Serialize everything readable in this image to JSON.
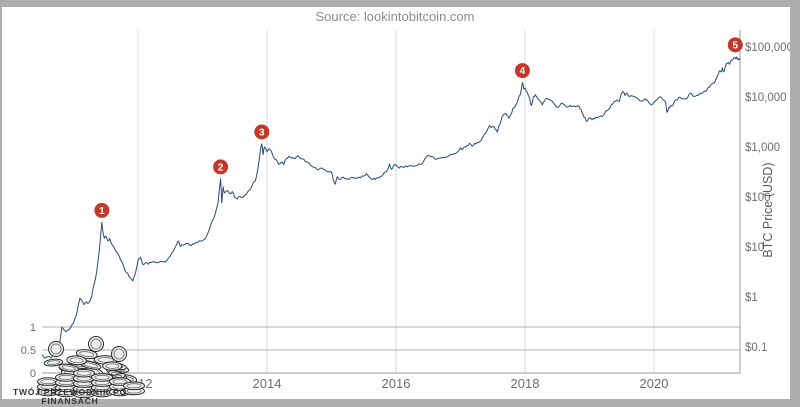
{
  "source_label": "Source: lookintobitcoin.com",
  "watermark": {
    "line1": "TWÓJ PRZEWODNIK PO",
    "line2": "FINANSACH"
  },
  "colors": {
    "line": "#2b4a7d",
    "marker": "#c0392b",
    "marker_text": "#ffffff",
    "grid_vertical": "#d9d9d9",
    "grid_horizontal": "#b3b3b3",
    "axis_line": "#9b9b9b",
    "tick_text": "#6e6e6e",
    "frame": "#aeaeae"
  },
  "chart_data": {
    "type": "line",
    "title": "",
    "xlabel": "",
    "ylabel": "BTC Price (USD)",
    "legend": "none",
    "grid": "partial",
    "x_ticks": [
      "2012",
      "2014",
      "2016",
      "2018",
      "2020"
    ],
    "x_tick_values": [
      2012,
      2014,
      2016,
      2018,
      2020
    ],
    "x_range": [
      2010.51,
      2021.35
    ],
    "right_axis": {
      "scale": "log",
      "tick_labels": [
        "$100,000",
        "$10,000",
        "$1,000",
        "$100",
        "$10",
        "$1",
        "$0.1"
      ],
      "tick_values": [
        100000,
        10000,
        1000,
        100,
        10,
        1,
        0.1
      ],
      "range_usd": [
        0.03,
        219000
      ]
    },
    "left_axis": {
      "scale": "linear",
      "tick_labels": [
        "1",
        "0.5",
        "0"
      ],
      "tick_values": [
        1,
        0.5,
        0
      ],
      "range": [
        0,
        1
      ]
    },
    "markers": [
      {
        "label": "1",
        "year": 2011.44,
        "price": 31
      },
      {
        "label": "2",
        "year": 2013.28,
        "price": 230
      },
      {
        "label": "3",
        "year": 2013.92,
        "price": 1150
      },
      {
        "label": "4",
        "year": 2017.96,
        "price": 19400
      },
      {
        "label": "5",
        "year": 2021.26,
        "price": 63500
      }
    ],
    "series": [
      {
        "name": "BTC Price",
        "points": [
          [
            2010.51,
            0.07
          ],
          [
            2010.55,
            0.06
          ],
          [
            2010.6,
            0.065
          ],
          [
            2010.65,
            0.06
          ],
          [
            2010.7,
            0.07
          ],
          [
            2010.75,
            0.09
          ],
          [
            2010.78,
            0.11
          ],
          [
            2010.82,
            0.25
          ],
          [
            2010.85,
            0.22
          ],
          [
            2010.88,
            0.2
          ],
          [
            2010.92,
            0.22
          ],
          [
            2010.96,
            0.25
          ],
          [
            2011.0,
            0.3
          ],
          [
            2011.04,
            0.42
          ],
          [
            2011.08,
            0.75
          ],
          [
            2011.1,
            0.95
          ],
          [
            2011.13,
            0.85
          ],
          [
            2011.16,
            0.7
          ],
          [
            2011.2,
            0.8
          ],
          [
            2011.24,
            0.77
          ],
          [
            2011.28,
            1.0
          ],
          [
            2011.32,
            1.8
          ],
          [
            2011.36,
            3.2
          ],
          [
            2011.4,
            8.5
          ],
          [
            2011.42,
            17
          ],
          [
            2011.44,
            31
          ],
          [
            2011.46,
            19
          ],
          [
            2011.48,
            15
          ],
          [
            2011.5,
            16.5
          ],
          [
            2011.53,
            13.5
          ],
          [
            2011.56,
            14.8
          ],
          [
            2011.6,
            11
          ],
          [
            2011.64,
            9
          ],
          [
            2011.68,
            7.5
          ],
          [
            2011.72,
            6
          ],
          [
            2011.76,
            4.8
          ],
          [
            2011.8,
            3.4
          ],
          [
            2011.84,
            3.0
          ],
          [
            2011.88,
            2.4
          ],
          [
            2011.92,
            2.1
          ],
          [
            2011.96,
            3.0
          ],
          [
            2012.0,
            5.4
          ],
          [
            2012.04,
            6.2
          ],
          [
            2012.08,
            4.4
          ],
          [
            2012.12,
            4.9
          ],
          [
            2012.16,
            4.5
          ],
          [
            2012.2,
            4.9
          ],
          [
            2012.25,
            5.1
          ],
          [
            2012.3,
            4.9
          ],
          [
            2012.35,
            5.2
          ],
          [
            2012.4,
            5.1
          ],
          [
            2012.45,
            5.4
          ],
          [
            2012.5,
            6.6
          ],
          [
            2012.55,
            8.4
          ],
          [
            2012.6,
            11.2
          ],
          [
            2012.63,
            13.2
          ],
          [
            2012.66,
            10.2
          ],
          [
            2012.7,
            10.9
          ],
          [
            2012.75,
            11.8
          ],
          [
            2012.8,
            10.8
          ],
          [
            2012.85,
            11.6
          ],
          [
            2012.9,
            12.5
          ],
          [
            2012.95,
            13.3
          ],
          [
            2013.0,
            13.4
          ],
          [
            2013.05,
            15
          ],
          [
            2013.1,
            21
          ],
          [
            2013.15,
            33
          ],
          [
            2013.2,
            47
          ],
          [
            2013.24,
            75
          ],
          [
            2013.28,
            230
          ],
          [
            2013.3,
            77
          ],
          [
            2013.32,
            160
          ],
          [
            2013.34,
            120
          ],
          [
            2013.38,
            135
          ],
          [
            2013.42,
            117
          ],
          [
            2013.46,
            128
          ],
          [
            2013.5,
            97
          ],
          [
            2013.54,
            91
          ],
          [
            2013.58,
            103
          ],
          [
            2013.62,
            97
          ],
          [
            2013.66,
            108
          ],
          [
            2013.7,
            127
          ],
          [
            2013.74,
            140
          ],
          [
            2013.78,
            185
          ],
          [
            2013.82,
            210
          ],
          [
            2013.86,
            380
          ],
          [
            2013.9,
            900
          ],
          [
            2013.92,
            1150
          ],
          [
            2013.94,
            705
          ],
          [
            2013.96,
            1000
          ],
          [
            2014.0,
            805
          ],
          [
            2014.03,
            930
          ],
          [
            2014.07,
            820
          ],
          [
            2014.1,
            630
          ],
          [
            2014.14,
            570
          ],
          [
            2014.18,
            450
          ],
          [
            2014.22,
            500
          ],
          [
            2014.26,
            445
          ],
          [
            2014.3,
            590
          ],
          [
            2014.34,
            655
          ],
          [
            2014.38,
            600
          ],
          [
            2014.42,
            585
          ],
          [
            2014.46,
            650
          ],
          [
            2014.5,
            620
          ],
          [
            2014.55,
            585
          ],
          [
            2014.6,
            505
          ],
          [
            2014.65,
            480
          ],
          [
            2014.7,
            410
          ],
          [
            2014.75,
            385
          ],
          [
            2014.8,
            355
          ],
          [
            2014.85,
            380
          ],
          [
            2014.9,
            350
          ],
          [
            2014.95,
            320
          ],
          [
            2015.0,
            315
          ],
          [
            2015.03,
            215
          ],
          [
            2015.06,
            180
          ],
          [
            2015.09,
            255
          ],
          [
            2015.12,
            225
          ],
          [
            2015.16,
            245
          ],
          [
            2015.2,
            235
          ],
          [
            2015.25,
            230
          ],
          [
            2015.3,
            245
          ],
          [
            2015.35,
            237
          ],
          [
            2015.4,
            235
          ],
          [
            2015.45,
            242
          ],
          [
            2015.5,
            262
          ],
          [
            2015.54,
            292
          ],
          [
            2015.58,
            255
          ],
          [
            2015.62,
            228
          ],
          [
            2015.66,
            237
          ],
          [
            2015.7,
            238
          ],
          [
            2015.74,
            242
          ],
          [
            2015.78,
            262
          ],
          [
            2015.82,
            315
          ],
          [
            2015.86,
            330
          ],
          [
            2015.9,
            460
          ],
          [
            2015.93,
            360
          ],
          [
            2015.96,
            415
          ],
          [
            2016.0,
            432
          ],
          [
            2016.05,
            378
          ],
          [
            2016.1,
            398
          ],
          [
            2016.15,
            416
          ],
          [
            2016.2,
            418
          ],
          [
            2016.25,
            423
          ],
          [
            2016.3,
            417
          ],
          [
            2016.35,
            455
          ],
          [
            2016.4,
            452
          ],
          [
            2016.45,
            585
          ],
          [
            2016.5,
            680
          ],
          [
            2016.53,
            660
          ],
          [
            2016.56,
            640
          ],
          [
            2016.6,
            575
          ],
          [
            2016.65,
            590
          ],
          [
            2016.7,
            605
          ],
          [
            2016.75,
            615
          ],
          [
            2016.8,
            635
          ],
          [
            2016.85,
            710
          ],
          [
            2016.9,
            735
          ],
          [
            2016.95,
            790
          ],
          [
            2017.0,
            963
          ],
          [
            2017.03,
            890
          ],
          [
            2017.06,
            1010
          ],
          [
            2017.1,
            1060
          ],
          [
            2017.14,
            1180
          ],
          [
            2017.18,
            1030
          ],
          [
            2017.22,
            1180
          ],
          [
            2017.26,
            1230
          ],
          [
            2017.3,
            1290
          ],
          [
            2017.34,
            1550
          ],
          [
            2017.38,
            1850
          ],
          [
            2017.42,
            2250
          ],
          [
            2017.45,
            2700
          ],
          [
            2017.48,
            2450
          ],
          [
            2017.51,
            2550
          ],
          [
            2017.54,
            2250
          ],
          [
            2017.57,
            1990
          ],
          [
            2017.6,
            2750
          ],
          [
            2017.63,
            3400
          ],
          [
            2017.66,
            4350
          ],
          [
            2017.69,
            4650
          ],
          [
            2017.72,
            4300
          ],
          [
            2017.75,
            3750
          ],
          [
            2017.78,
            4400
          ],
          [
            2017.81,
            5800
          ],
          [
            2017.84,
            6100
          ],
          [
            2017.87,
            7300
          ],
          [
            2017.9,
            9900
          ],
          [
            2017.93,
            11500
          ],
          [
            2017.96,
            19400
          ],
          [
            2017.98,
            14500
          ],
          [
            2018.0,
            15000
          ],
          [
            2018.02,
            13000
          ],
          [
            2018.05,
            11000
          ],
          [
            2018.08,
            8300
          ],
          [
            2018.1,
            6800
          ],
          [
            2018.13,
            10200
          ],
          [
            2018.16,
            11100
          ],
          [
            2018.2,
            9100
          ],
          [
            2018.24,
            8000
          ],
          [
            2018.27,
            6900
          ],
          [
            2018.3,
            8200
          ],
          [
            2018.33,
            9300
          ],
          [
            2018.36,
            9000
          ],
          [
            2018.4,
            8400
          ],
          [
            2018.44,
            7600
          ],
          [
            2018.48,
            6450
          ],
          [
            2018.52,
            6250
          ],
          [
            2018.56,
            7400
          ],
          [
            2018.6,
            7050
          ],
          [
            2018.64,
            6350
          ],
          [
            2018.68,
            6500
          ],
          [
            2018.72,
            6400
          ],
          [
            2018.76,
            6550
          ],
          [
            2018.8,
            6450
          ],
          [
            2018.84,
            6400
          ],
          [
            2018.87,
            5600
          ],
          [
            2018.9,
            4400
          ],
          [
            2018.93,
            3900
          ],
          [
            2018.96,
            3250
          ],
          [
            2019.0,
            3850
          ],
          [
            2019.04,
            3500
          ],
          [
            2019.08,
            3650
          ],
          [
            2019.12,
            3900
          ],
          [
            2019.16,
            4050
          ],
          [
            2019.2,
            4100
          ],
          [
            2019.25,
            5250
          ],
          [
            2019.3,
            5700
          ],
          [
            2019.34,
            7100
          ],
          [
            2019.38,
            8100
          ],
          [
            2019.42,
            8700
          ],
          [
            2019.46,
            8100
          ],
          [
            2019.49,
            11200
          ],
          [
            2019.52,
            12900
          ],
          [
            2019.55,
            10700
          ],
          [
            2019.58,
            11900
          ],
          [
            2019.62,
            10200
          ],
          [
            2019.66,
            10500
          ],
          [
            2019.7,
            10150
          ],
          [
            2019.74,
            9500
          ],
          [
            2019.78,
            8450
          ],
          [
            2019.82,
            8250
          ],
          [
            2019.86,
            9250
          ],
          [
            2019.9,
            8550
          ],
          [
            2019.94,
            7250
          ],
          [
            2019.98,
            7200
          ],
          [
            2020.02,
            8300
          ],
          [
            2020.06,
            9350
          ],
          [
            2020.1,
            10150
          ],
          [
            2020.14,
            8850
          ],
          [
            2020.18,
            7900
          ],
          [
            2020.2,
            4950
          ],
          [
            2020.23,
            6250
          ],
          [
            2020.26,
            6750
          ],
          [
            2020.3,
            7100
          ],
          [
            2020.34,
            8750
          ],
          [
            2020.38,
            9650
          ],
          [
            2020.42,
            9450
          ],
          [
            2020.46,
            9150
          ],
          [
            2020.5,
            9150
          ],
          [
            2020.54,
            11000
          ],
          [
            2020.58,
            11750
          ],
          [
            2020.62,
            10300
          ],
          [
            2020.66,
            10700
          ],
          [
            2020.7,
            11400
          ],
          [
            2020.74,
            11650
          ],
          [
            2020.78,
            13100
          ],
          [
            2020.82,
            13850
          ],
          [
            2020.86,
            15650
          ],
          [
            2020.9,
            18400
          ],
          [
            2020.94,
            19200
          ],
          [
            2020.97,
            23800
          ],
          [
            2021.0,
            29050
          ],
          [
            2021.02,
            33500
          ],
          [
            2021.04,
            31500
          ],
          [
            2021.06,
            38500
          ],
          [
            2021.08,
            32100
          ],
          [
            2021.1,
            38300
          ],
          [
            2021.12,
            46400
          ],
          [
            2021.15,
            49200
          ],
          [
            2021.17,
            45100
          ],
          [
            2021.2,
            54200
          ],
          [
            2021.23,
            57500
          ],
          [
            2021.26,
            59800
          ],
          [
            2021.28,
            63500
          ],
          [
            2021.3,
            55800
          ],
          [
            2021.32,
            58900
          ],
          [
            2021.34,
            57000
          ]
        ]
      }
    ]
  }
}
